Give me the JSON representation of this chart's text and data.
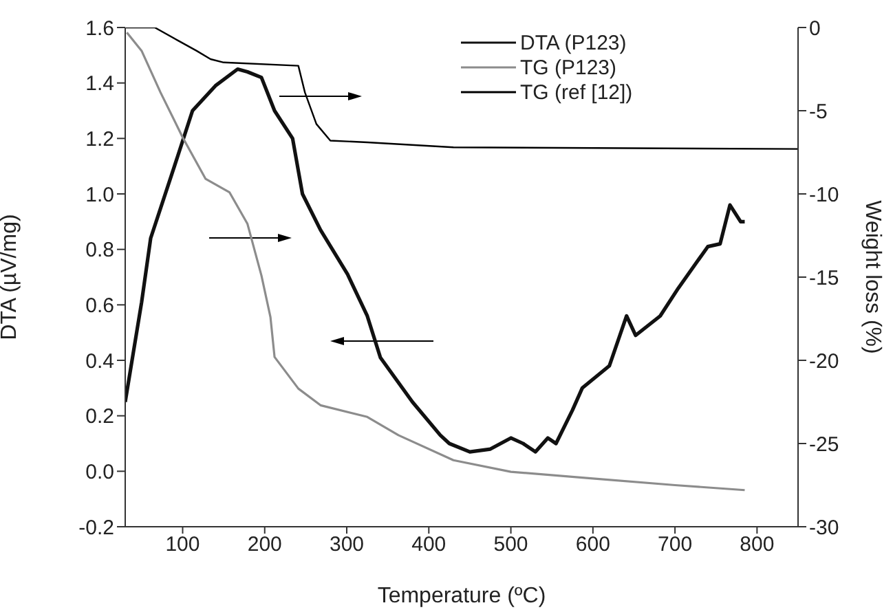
{
  "chart_data": {
    "type": "line",
    "xlabel": "Temperature (ºC)",
    "ylabel": "DTA (µV/mg)",
    "y2label": "Weight loss (%)",
    "xlim": [
      30,
      850
    ],
    "xticks": [
      100,
      200,
      300,
      400,
      500,
      600,
      700,
      800
    ],
    "ylim": [
      -0.2,
      1.6
    ],
    "yticks": [
      -0.2,
      {
        "value": 0,
        "label": "0.0"
      },
      0.2,
      0.4,
      0.6,
      0.8,
      {
        "value": 1,
        "label": "1.0"
      },
      1.2,
      1.4,
      1.6
    ],
    "y2lim": [
      -30,
      0
    ],
    "y2ticks": [
      -30,
      -25,
      -20,
      -15,
      -10,
      -5,
      0
    ],
    "legend": "top right",
    "grid": false,
    "series": [
      {
        "name": "DTA (P123)",
        "color": "#111111",
        "x": [
          30,
          50,
          61,
          90,
          112,
          140,
          167,
          179,
          196,
          212,
          234,
          246,
          268,
          301,
          325,
          341,
          380,
          414,
          425,
          450,
          475,
          500,
          515,
          530,
          545,
          555,
          575,
          587,
          620,
          641,
          652,
          682,
          704,
          740,
          755,
          767,
          780,
          785
        ],
        "values": [
          0.25,
          0.61,
          0.84,
          1.1,
          1.3,
          1.39,
          1.45,
          1.44,
          1.42,
          1.3,
          1.2,
          1.0,
          0.87,
          0.71,
          0.56,
          0.41,
          0.25,
          0.13,
          0.1,
          0.07,
          0.08,
          0.12,
          0.1,
          0.07,
          0.12,
          0.1,
          0.22,
          0.3,
          0.38,
          0.56,
          0.49,
          0.56,
          0.66,
          0.81,
          0.82,
          0.96,
          0.9,
          0.9
        ]
      },
      {
        "name": "TG (P123)",
        "color": "#8c8c8c",
        "axis": "y2",
        "x": [
          32,
          50,
          73,
          100,
          128,
          157,
          179,
          196,
          207,
          212,
          241,
          268,
          325,
          363,
          430,
          500,
          600,
          700,
          785
        ],
        "values": [
          -0.3,
          -1.4,
          -3.9,
          -6.6,
          -9.1,
          -9.9,
          -11.8,
          -14.9,
          -17.4,
          -19.8,
          -21.7,
          -22.7,
          -23.4,
          -24.5,
          -26.0,
          -26.7,
          -27.1,
          -27.5,
          -27.8
        ]
      },
      {
        "name": "TG (ref [12])",
        "color": "#000000",
        "axis": "y2",
        "x": [
          30,
          66,
          95,
          117,
          134,
          150,
          241,
          249,
          263,
          280,
          325,
          430,
          850
        ],
        "values": [
          0,
          0,
          -0.8,
          -1.4,
          -1.9,
          -2.1,
          -2.3,
          -3.9,
          -5.8,
          -6.8,
          -6.9,
          -7.2,
          -7.3
        ]
      }
    ]
  }
}
